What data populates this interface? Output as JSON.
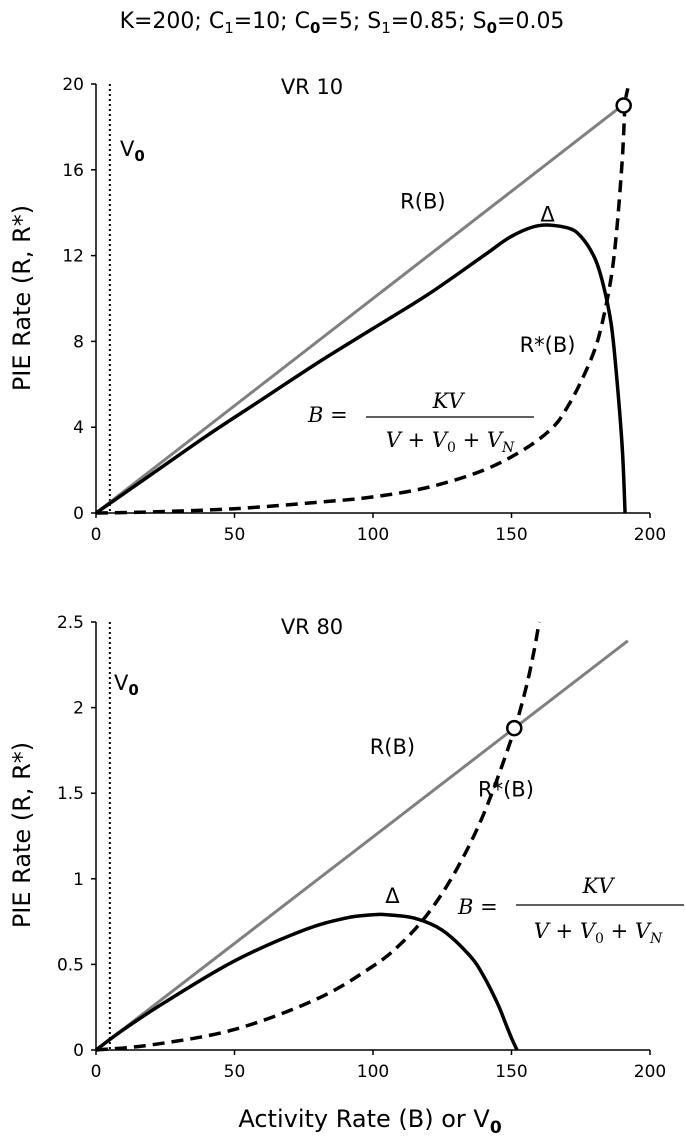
{
  "header": {
    "K": "K=200;",
    "C1_base": "C",
    "C1_sub": "1",
    "C1_val": "=10;",
    "C0_base": "C",
    "C0_sub": "0",
    "C0_val": "=5;",
    "S1_base": "S",
    "S1_sub": "1",
    "S1_val": "=0.85;",
    "S0_base": "S",
    "S0_sub": "0",
    "S0_val": "=0.05"
  },
  "formula": {
    "lhs": "B =",
    "numerator": "KV",
    "denominator": "V + V",
    "den_sub0": "0",
    "den_plus": " + V",
    "den_subN": "N"
  },
  "colors": {
    "linear": "#808080",
    "curves": "#000000"
  },
  "chart_data": [
    {
      "type": "line",
      "title": "VR 10",
      "ylabel": "PIE Rate (R, R*)",
      "xlabel": "",
      "xlim": [
        0,
        200
      ],
      "ylim": [
        0,
        20
      ],
      "xticks": [
        "0",
        "50",
        "100",
        "150",
        "200"
      ],
      "yticks": [
        "0",
        "4",
        "8",
        "12",
        "16",
        "20"
      ],
      "vline": {
        "x": 5,
        "label": "V",
        "label_sub": "0"
      },
      "series": [
        {
          "name": "R(B)",
          "style": "solid-gray",
          "x": [
            0,
            190
          ],
          "y": [
            0,
            19
          ]
        },
        {
          "name": "Δ",
          "style": "solid-black",
          "x": [
            0,
            20,
            40,
            60,
            80,
            100,
            120,
            140,
            150,
            160,
            170,
            175,
            180,
            183,
            186,
            188,
            190,
            191
          ],
          "y": [
            0,
            1.8,
            3.6,
            5.3,
            7.0,
            8.6,
            10.2,
            12.0,
            12.9,
            13.4,
            13.3,
            12.9,
            11.9,
            10.7,
            8.8,
            6.3,
            3.0,
            0
          ]
        },
        {
          "name": "R*(B)",
          "style": "dashed-black",
          "x": [
            0,
            20,
            50,
            80,
            100,
            120,
            140,
            155,
            165,
            170,
            175,
            180,
            183,
            186,
            188,
            190,
            191,
            192
          ],
          "y": [
            0,
            0.05,
            0.2,
            0.5,
            0.75,
            1.2,
            2.0,
            3.0,
            4.0,
            4.9,
            6.1,
            7.6,
            9.0,
            11.0,
            13.2,
            16.5,
            19.0,
            19.8
          ]
        }
      ],
      "annotations": [
        {
          "text": "R(B)",
          "x": 118,
          "y": 14.2
        },
        {
          "text": "Δ",
          "x": 163,
          "y": 13.6
        },
        {
          "text": "R*(B)",
          "x": 163,
          "y": 7.5
        }
      ],
      "intersection": {
        "x": 190.5,
        "y": 19.0
      }
    },
    {
      "type": "line",
      "title": "VR 80",
      "ylabel": "PIE Rate (R, R*)",
      "xlabel": "Activity Rate (B) or V",
      "xlabel_sub": "0",
      "xlim": [
        0,
        200
      ],
      "ylim": [
        0,
        2.5
      ],
      "xticks": [
        "0",
        "50",
        "100",
        "150",
        "200"
      ],
      "yticks": [
        "0",
        "0.5",
        "1",
        "1.5",
        "2",
        "2.5"
      ],
      "vline": {
        "x": 5,
        "label": "V",
        "label_sub": "0"
      },
      "series": [
        {
          "name": "R(B)",
          "style": "solid-gray",
          "x": [
            0,
            192
          ],
          "y": [
            0,
            2.39
          ]
        },
        {
          "name": "Δ",
          "style": "solid-black",
          "x": [
            0,
            10,
            25,
            50,
            75,
            90,
            100,
            105,
            115,
            125,
            135,
            140,
            145,
            148,
            150,
            152
          ],
          "y": [
            0,
            0.12,
            0.28,
            0.52,
            0.7,
            0.77,
            0.79,
            0.79,
            0.77,
            0.7,
            0.55,
            0.43,
            0.27,
            0.15,
            0.07,
            0
          ]
        },
        {
          "name": "R*(B)",
          "style": "dashed-black",
          "x": [
            0,
            20,
            50,
            80,
            100,
            110,
            120,
            130,
            140,
            150,
            155,
            158,
            160
          ],
          "y": [
            0,
            0.03,
            0.12,
            0.3,
            0.49,
            0.62,
            0.8,
            1.05,
            1.38,
            1.82,
            2.1,
            2.32,
            2.5
          ]
        }
      ],
      "annotations": [
        {
          "text": "R(B)",
          "x": 107,
          "y": 1.73
        },
        {
          "text": "Δ",
          "x": 107,
          "y": 0.86
        },
        {
          "text": "R*(B)",
          "x": 148,
          "y": 1.48
        }
      ],
      "intersection": {
        "x": 151,
        "y": 1.88
      }
    }
  ]
}
